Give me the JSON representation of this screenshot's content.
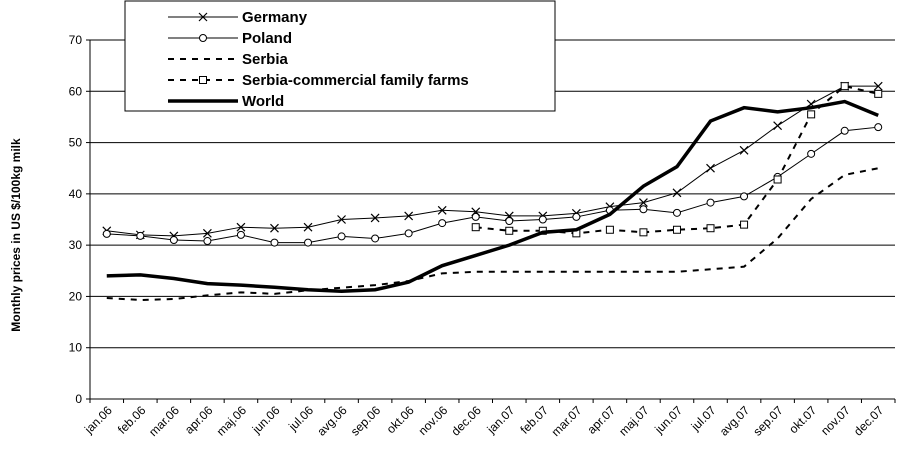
{
  "chart_data": {
    "type": "line",
    "y_label": "Monthly prices in US $/100kg milk",
    "categories": [
      "jan.06",
      "feb.06",
      "mar.06",
      "apr.06",
      "maj.06",
      "jun.06",
      "jul.06",
      "avg.06",
      "sep.06",
      "okt.06",
      "nov.06",
      "dec.06",
      "jan.07",
      "feb.07",
      "mar.07",
      "apr.07",
      "maj.07",
      "jun.07",
      "jul.07",
      "avg.07",
      "sep.07",
      "okt.07",
      "nov.07",
      "dec.07"
    ],
    "ylim": [
      0,
      70
    ],
    "yticks": [
      0,
      10,
      20,
      30,
      40,
      50,
      60,
      70
    ],
    "grid": true,
    "series": [
      {
        "name": "Germany",
        "color": "#000000",
        "marker": "x",
        "line_style": "solid",
        "line_width": 1,
        "values": [
          32.8,
          32,
          31.8,
          32.3,
          33.5,
          33.3,
          33.5,
          35,
          35.3,
          35.7,
          36.8,
          36.5,
          35.7,
          35.7,
          36.2,
          37.5,
          38.3,
          40.2,
          45,
          48.5,
          53.3,
          57.5,
          61,
          61
        ]
      },
      {
        "name": "Poland",
        "color": "#000000",
        "marker": "circle",
        "line_style": "solid",
        "line_width": 1,
        "values": [
          32.2,
          31.8,
          31,
          30.8,
          32,
          30.5,
          30.5,
          31.7,
          31.3,
          32.3,
          34.3,
          35.5,
          34.7,
          35,
          35.5,
          36.8,
          37,
          36.3,
          38.3,
          39.5,
          43.3,
          47.8,
          52.3,
          53
        ]
      },
      {
        "name": "Serbia",
        "color": "#000000",
        "marker": "none",
        "line_style": "dashed",
        "line_width": 2,
        "values": [
          19.7,
          19.3,
          19.5,
          20.2,
          20.8,
          20.5,
          21.2,
          21.7,
          22.2,
          23,
          24.5,
          24.8,
          24.8,
          24.8,
          24.8,
          24.8,
          24.8,
          24.8,
          25.3,
          25.8,
          31.3,
          39,
          43.7,
          45
        ]
      },
      {
        "name": "Serbia-commercial family farms",
        "color": "#000000",
        "marker": "square",
        "line_style": "dashed",
        "line_width": 2,
        "values": [
          null,
          null,
          null,
          null,
          null,
          null,
          null,
          null,
          null,
          null,
          null,
          33.5,
          32.8,
          32.8,
          32.3,
          33,
          32.5,
          33,
          33.3,
          34,
          42.8,
          55.5,
          61,
          59.5
        ]
      },
      {
        "name": "World",
        "color": "#000000",
        "marker": "none",
        "line_style": "solid",
        "line_width": 3.5,
        "values": [
          24,
          24.2,
          23.5,
          22.5,
          22.2,
          21.8,
          21.3,
          21,
          21.3,
          22.8,
          26,
          28,
          30,
          32.5,
          33,
          36,
          41.5,
          45.3,
          54.2,
          56.8,
          56,
          56.8,
          58,
          55.3
        ]
      }
    ]
  }
}
